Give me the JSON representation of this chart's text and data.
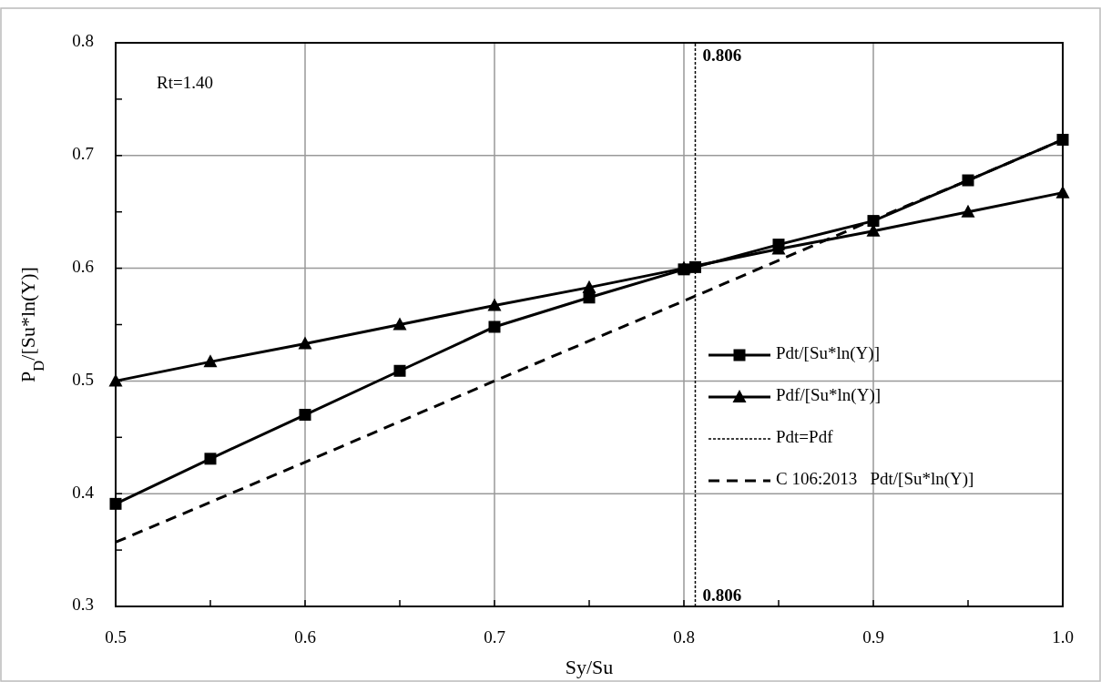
{
  "chart_data": {
    "type": "line",
    "xlabel": "Sy/Su",
    "ylabel": "P$_{D}$/[Su*ln(Y)]",
    "xlim": [
      0.5,
      1.0
    ],
    "ylim": [
      0.3,
      0.8
    ],
    "xticks": [
      0.5,
      {
        "value": 0.55,
        "label": null
      },
      0.6,
      {
        "value": 0.65,
        "label": null
      },
      0.7,
      {
        "value": 0.75,
        "label": null
      },
      0.8,
      {
        "value": 0.85,
        "label": null
      },
      0.9,
      {
        "value": 0.95,
        "label": null
      },
      {
        "value": 1.0,
        "label": "1.0"
      }
    ],
    "yticks": [
      0.3,
      {
        "value": 0.35,
        "label": null
      },
      0.4,
      {
        "value": 0.45,
        "label": null
      },
      0.5,
      {
        "value": 0.55,
        "label": null
      },
      0.6,
      {
        "value": 0.65,
        "label": null
      },
      0.7,
      {
        "value": 0.75,
        "label": null
      },
      0.8
    ],
    "grid": true,
    "legend": "right",
    "series": [
      {
        "name": "Pdt/[Su*ln(Y)]",
        "color": "#000000",
        "marker": "square",
        "line_style": "solid",
        "x": [
          0.5,
          0.55,
          0.6,
          0.65,
          0.7,
          0.75,
          0.8,
          0.806,
          0.85,
          0.9,
          0.95,
          1.0
        ],
        "values": [
          0.391,
          0.431,
          0.47,
          0.509,
          0.548,
          0.574,
          0.599,
          0.601,
          0.621,
          0.642,
          0.678,
          0.714
        ]
      },
      {
        "name": "Pdf/[Su*ln(Y)]",
        "color": "#000000",
        "marker": "triangle",
        "line_style": "solid",
        "x": [
          0.5,
          0.55,
          0.6,
          0.65,
          0.7,
          0.75,
          0.8,
          0.85,
          0.9,
          0.95,
          1.0
        ],
        "values": [
          0.5,
          0.517,
          0.533,
          0.55,
          0.567,
          0.583,
          0.6,
          0.617,
          0.633,
          0.65,
          0.667
        ]
      },
      {
        "name": "Pdt=Pdf",
        "color": "#000000",
        "marker": "none",
        "line_style": "dotted",
        "x": [
          0.806,
          0.806
        ],
        "values": [
          0.3,
          0.8
        ]
      },
      {
        "name": "C 106:2013   Pdt/[Su*ln(Y)]",
        "color": "#000000",
        "marker": "none",
        "line_style": "dashed",
        "x": [
          0.5,
          0.6,
          0.7,
          0.8,
          0.9,
          0.95,
          1.0
        ],
        "values": [
          0.357,
          0.428,
          0.5,
          0.571,
          0.643,
          0.678,
          0.714
        ]
      }
    ],
    "annotations": [
      "Rt=1.40",
      {
        "text": "0.806",
        "x": 0.806,
        "y": 0.8
      },
      {
        "text": "0.806",
        "x": 0.806,
        "y": 0.3
      }
    ]
  }
}
